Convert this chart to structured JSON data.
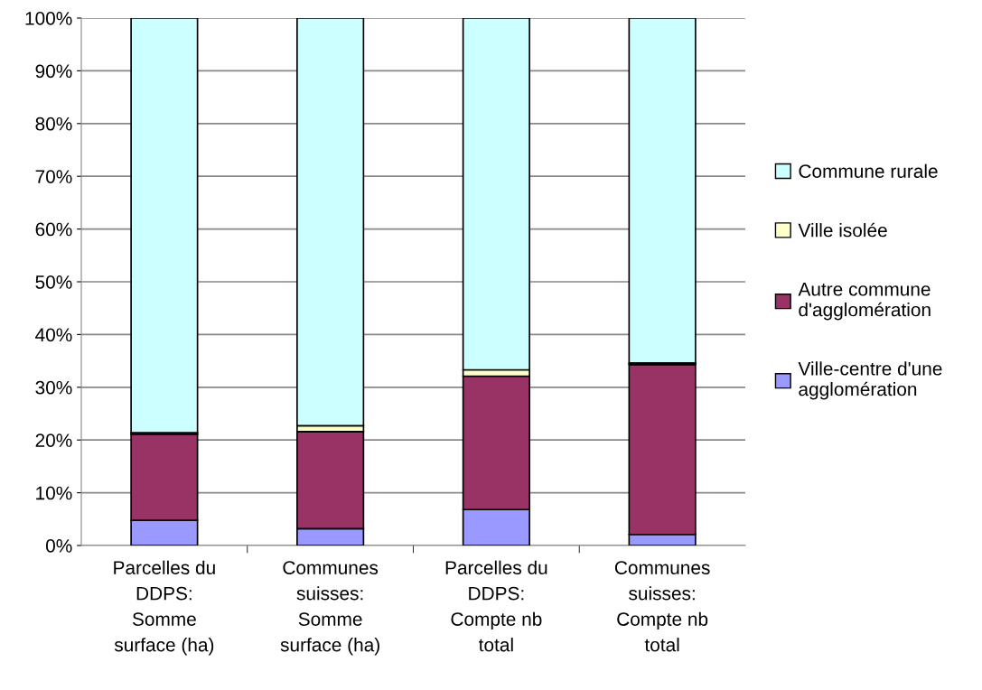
{
  "chart_data": {
    "type": "bar",
    "stacked": true,
    "categories": [
      "Parcelles du\nDDPS:\nSomme\nsurface (ha)",
      "Communes\nsuisses:\nSomme\nsurface (ha)",
      "Parcelles du\nDDPS:\nCompte nb\ntotal",
      "Communes\nsuisses:\nCompte nb\ntotal"
    ],
    "series": [
      {
        "name": "Ville-centre d'une\nagglomération",
        "color": "#9999ff",
        "values": [
          4.8,
          3.2,
          6.8,
          2.1
        ]
      },
      {
        "name": "Autre commune\nd'agglomération",
        "color": "#993366",
        "values": [
          16.3,
          18.4,
          25.3,
          32.2
        ]
      },
      {
        "name": "Ville isolée",
        "color": "#ffffcc",
        "values": [
          0.3,
          1.1,
          1.2,
          0.3
        ]
      },
      {
        "name": "Commune rurale",
        "color": "#ccffff",
        "values": [
          78.6,
          77.3,
          66.7,
          65.4
        ]
      }
    ],
    "ylim": [
      0,
      100
    ],
    "yticks": [
      {
        "value": 0,
        "label": "0%"
      },
      {
        "value": 10,
        "label": "10%"
      },
      {
        "value": 20,
        "label": "20%"
      },
      {
        "value": 30,
        "label": "30%"
      },
      {
        "value": 40,
        "label": "40%"
      },
      {
        "value": 50,
        "label": "50%"
      },
      {
        "value": 60,
        "label": "60%"
      },
      {
        "value": 70,
        "label": "70%"
      },
      {
        "value": 80,
        "label": "80%"
      },
      {
        "value": 90,
        "label": "90%"
      },
      {
        "value": 100,
        "label": "100%"
      }
    ],
    "grid": "y",
    "legend": "right"
  }
}
